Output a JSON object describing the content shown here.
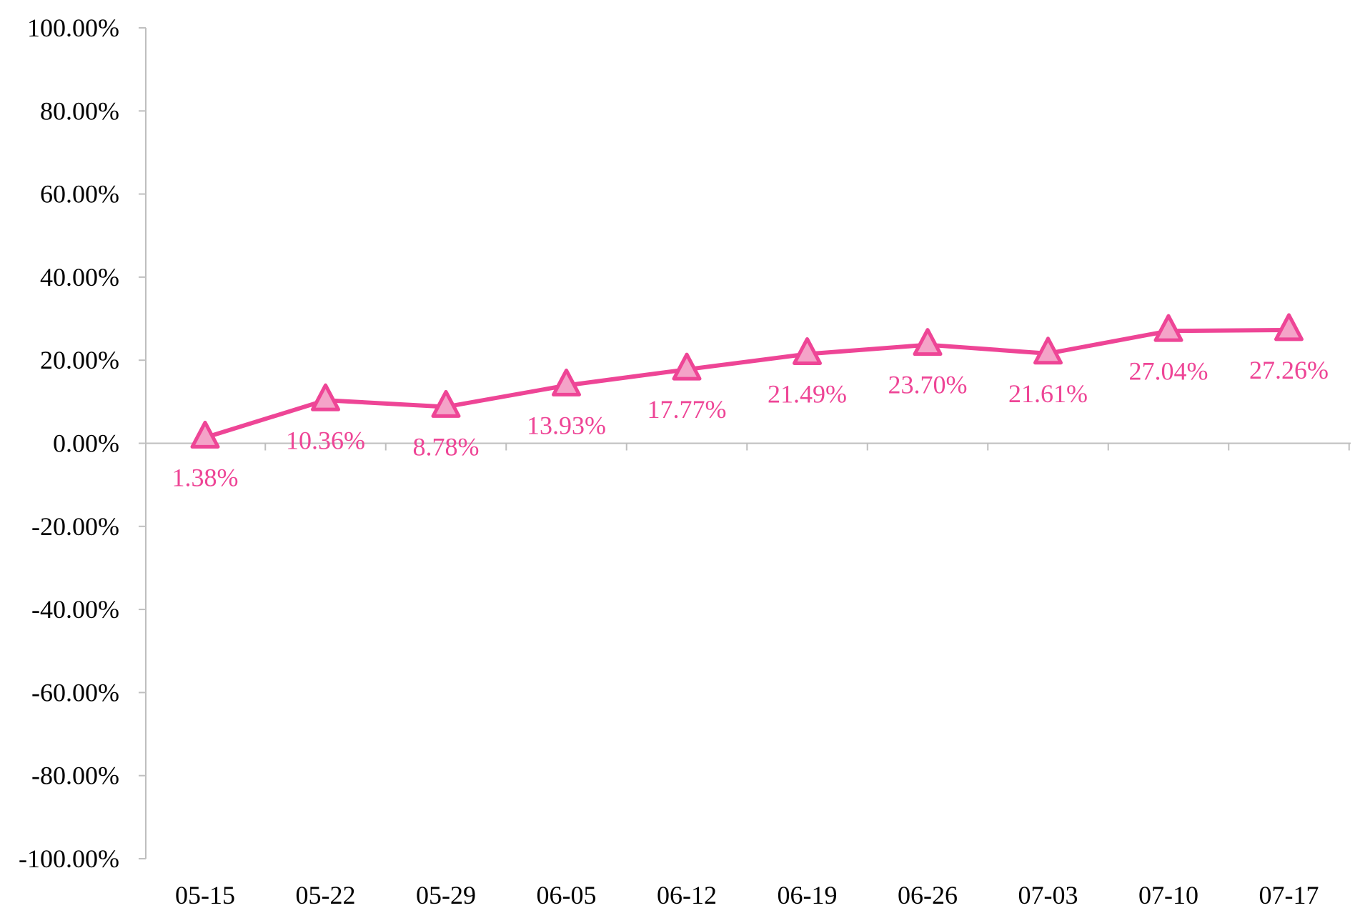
{
  "chart_data": {
    "type": "line",
    "title": "",
    "xlabel": "",
    "ylabel": "",
    "categories": [
      "05-15",
      "05-22",
      "05-29",
      "06-05",
      "06-12",
      "06-19",
      "06-26",
      "07-03",
      "07-10",
      "07-17"
    ],
    "series": [
      {
        "values": [
          1.38,
          10.36,
          8.78,
          13.93,
          17.77,
          21.49,
          23.7,
          21.61,
          27.04,
          27.26
        ],
        "labels": [
          "1.38%",
          "10.36%",
          "8.78%",
          "13.93%",
          "17.77%",
          "21.49%",
          "23.70%",
          "21.61%",
          "27.04%",
          "27.26%"
        ],
        "color": "#EE4596",
        "marker_fill": "#F4A3C8",
        "marker": "triangle"
      }
    ],
    "ylim": [
      -100,
      100
    ],
    "y_ticks": [
      100,
      80,
      60,
      40,
      20,
      0,
      -20,
      -40,
      -60,
      -80,
      -100
    ],
    "y_tick_labels": [
      "100.00%",
      "80.00%",
      "60.00%",
      "40.00%",
      "20.00%",
      "0.00%",
      "-20.00%",
      "-40.00%",
      "-60.00%",
      "-80.00%",
      "-100.00%"
    ],
    "grid": false,
    "legend": "none",
    "axis_color": "#BFBFBF",
    "label_color": "#EE4596"
  }
}
